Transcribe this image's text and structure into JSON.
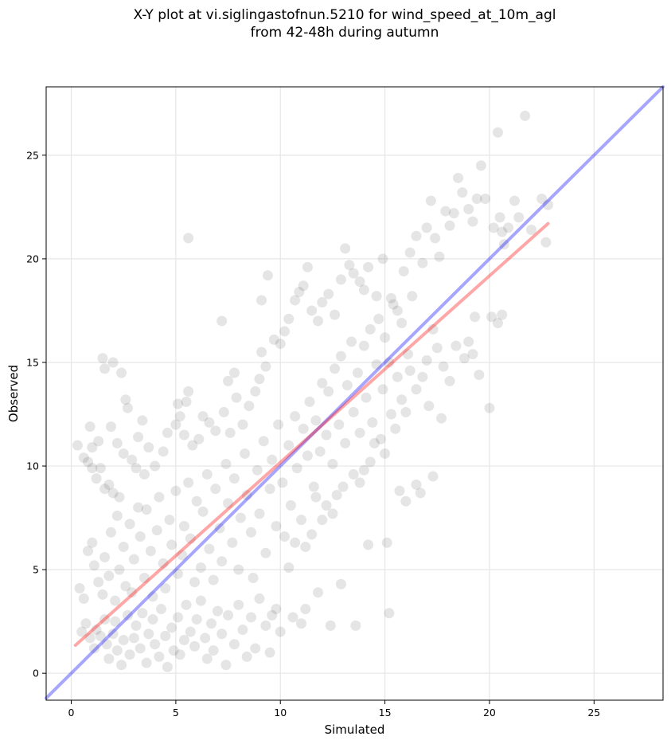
{
  "chart_data": {
    "type": "scatter",
    "title": "X-Y plot at vi.siglingastofnun.5210 for wind_speed_at_10m_agl\nfrom 42-48h during autumn",
    "xlabel": "Simulated",
    "ylabel": "Observed",
    "xlim": [
      -1.2,
      28.3
    ],
    "ylim": [
      -1.3,
      28.3
    ],
    "xticks": [
      0,
      5,
      10,
      15,
      20,
      25
    ],
    "yticks": [
      0,
      5,
      10,
      15,
      20,
      25
    ],
    "grid": true,
    "colors": {
      "points": "#333333",
      "identity": "#0000ff",
      "fit": "#ff0000",
      "grid": "#e6e6e6"
    },
    "identity_line": {
      "from": [
        -1.2,
        -1.2
      ],
      "to": [
        28.3,
        28.3
      ]
    },
    "fit_line": {
      "from": [
        0.2,
        1.35
      ],
      "to": [
        22.8,
        21.7
      ]
    },
    "points": [
      [
        0.3,
        11.0
      ],
      [
        0.6,
        10.4
      ],
      [
        0.8,
        10.2
      ],
      [
        1.0,
        9.9
      ],
      [
        1.2,
        9.4
      ],
      [
        1.4,
        9.9
      ],
      [
        1.6,
        8.9
      ],
      [
        1.8,
        9.1
      ],
      [
        2.0,
        8.7
      ],
      [
        2.3,
        8.5
      ],
      [
        1.5,
        15.2
      ],
      [
        1.6,
        14.7
      ],
      [
        2.0,
        15.0
      ],
      [
        2.4,
        14.5
      ],
      [
        1.9,
        11.9
      ],
      [
        2.6,
        13.2
      ],
      [
        2.7,
        12.8
      ],
      [
        3.4,
        12.2
      ],
      [
        3.2,
        11.4
      ],
      [
        3.7,
        10.9
      ],
      [
        2.2,
        11.1
      ],
      [
        0.9,
        11.9
      ],
      [
        1.3,
        11.2
      ],
      [
        1.0,
        10.9
      ],
      [
        2.5,
        10.6
      ],
      [
        2.9,
        10.3
      ],
      [
        3.1,
        9.9
      ],
      [
        3.5,
        9.6
      ],
      [
        4.0,
        10.0
      ],
      [
        4.4,
        10.7
      ],
      [
        4.6,
        11.6
      ],
      [
        5.0,
        12.0
      ],
      [
        5.2,
        12.4
      ],
      [
        5.5,
        13.1
      ],
      [
        5.6,
        13.6
      ],
      [
        5.1,
        13.0
      ],
      [
        5.4,
        11.5
      ],
      [
        5.8,
        11.0
      ],
      [
        6.1,
        11.3
      ],
      [
        6.3,
        12.4
      ],
      [
        5.6,
        21.0
      ],
      [
        7.2,
        17.0
      ],
      [
        7.5,
        14.1
      ],
      [
        7.8,
        14.5
      ],
      [
        7.9,
        13.3
      ],
      [
        7.3,
        12.6
      ],
      [
        6.6,
        12.1
      ],
      [
        6.9,
        11.7
      ],
      [
        7.6,
        11.6
      ],
      [
        8.2,
        12.0
      ],
      [
        8.5,
        12.9
      ],
      [
        8.8,
        13.6
      ],
      [
        9.0,
        14.2
      ],
      [
        9.3,
        14.8
      ],
      [
        9.1,
        15.5
      ],
      [
        9.7,
        16.1
      ],
      [
        9.4,
        19.2
      ],
      [
        9.1,
        18.0
      ],
      [
        10.0,
        15.9
      ],
      [
        10.2,
        16.5
      ],
      [
        10.4,
        17.1
      ],
      [
        10.7,
        18.0
      ],
      [
        10.9,
        18.4
      ],
      [
        11.1,
        18.7
      ],
      [
        11.3,
        19.6
      ],
      [
        11.5,
        17.5
      ],
      [
        11.8,
        17.0
      ],
      [
        12.0,
        17.9
      ],
      [
        12.3,
        18.3
      ],
      [
        12.6,
        17.3
      ],
      [
        12.9,
        19.0
      ],
      [
        13.1,
        20.5
      ],
      [
        13.3,
        19.7
      ],
      [
        13.5,
        19.3
      ],
      [
        13.8,
        18.9
      ],
      [
        14.0,
        18.5
      ],
      [
        14.2,
        19.6
      ],
      [
        14.6,
        18.2
      ],
      [
        14.9,
        20.0
      ],
      [
        15.3,
        18.1
      ],
      [
        15.6,
        17.5
      ],
      [
        15.9,
        19.4
      ],
      [
        16.2,
        20.3
      ],
      [
        16.5,
        21.1
      ],
      [
        16.8,
        19.8
      ],
      [
        17.0,
        21.5
      ],
      [
        17.2,
        22.8
      ],
      [
        17.4,
        21.0
      ],
      [
        17.6,
        20.1
      ],
      [
        17.9,
        22.3
      ],
      [
        18.1,
        21.6
      ],
      [
        18.3,
        22.2
      ],
      [
        18.5,
        23.9
      ],
      [
        18.7,
        23.2
      ],
      [
        19.0,
        22.4
      ],
      [
        19.2,
        21.8
      ],
      [
        19.4,
        22.9
      ],
      [
        19.6,
        24.5
      ],
      [
        19.8,
        22.9
      ],
      [
        20.2,
        21.5
      ],
      [
        20.4,
        26.1
      ],
      [
        20.5,
        22.0
      ],
      [
        20.6,
        21.3
      ],
      [
        20.7,
        20.7
      ],
      [
        20.9,
        21.5
      ],
      [
        21.2,
        22.8
      ],
      [
        21.4,
        22.0
      ],
      [
        21.7,
        26.9
      ],
      [
        22.0,
        21.4
      ],
      [
        22.8,
        22.6
      ],
      [
        22.7,
        20.8
      ],
      [
        22.5,
        22.9
      ],
      [
        20.1,
        17.2
      ],
      [
        20.4,
        16.9
      ],
      [
        20.6,
        17.3
      ],
      [
        19.3,
        17.2
      ],
      [
        19.0,
        16.0
      ],
      [
        19.2,
        15.4
      ],
      [
        19.5,
        14.4
      ],
      [
        18.8,
        15.2
      ],
      [
        18.4,
        15.8
      ],
      [
        18.1,
        14.1
      ],
      [
        17.8,
        14.8
      ],
      [
        17.5,
        15.7
      ],
      [
        17.3,
        16.6
      ],
      [
        17.0,
        15.1
      ],
      [
        16.8,
        14.3
      ],
      [
        16.5,
        13.7
      ],
      [
        16.2,
        14.6
      ],
      [
        16.0,
        12.6
      ],
      [
        15.8,
        13.2
      ],
      [
        15.5,
        11.8
      ],
      [
        15.3,
        12.5
      ],
      [
        15.0,
        10.6
      ],
      [
        14.8,
        11.3
      ],
      [
        14.5,
        11.1
      ],
      [
        14.3,
        10.2
      ],
      [
        14.0,
        9.8
      ],
      [
        13.8,
        9.2
      ],
      [
        13.5,
        9.6
      ],
      [
        15.7,
        8.8
      ],
      [
        16.0,
        8.3
      ],
      [
        16.5,
        9.1
      ],
      [
        16.7,
        8.7
      ],
      [
        17.3,
        9.5
      ],
      [
        17.1,
        12.9
      ],
      [
        17.7,
        12.3
      ],
      [
        20.0,
        12.8
      ],
      [
        15.1,
        6.3
      ],
      [
        14.2,
        6.2
      ],
      [
        15.2,
        2.9
      ],
      [
        13.6,
        2.3
      ],
      [
        12.9,
        4.3
      ],
      [
        12.4,
        2.3
      ],
      [
        11.8,
        3.9
      ],
      [
        11.2,
        3.1
      ],
      [
        11.0,
        2.4
      ],
      [
        10.6,
        2.7
      ],
      [
        10.0,
        2.0
      ],
      [
        9.6,
        2.8
      ],
      [
        12.0,
        7.4
      ],
      [
        12.5,
        7.7
      ],
      [
        12.7,
        8.6
      ],
      [
        13.0,
        9.0
      ],
      [
        12.2,
        8.1
      ],
      [
        11.7,
        8.5
      ],
      [
        11.5,
        6.7
      ],
      [
        11.2,
        6.1
      ],
      [
        10.7,
        6.3
      ],
      [
        10.4,
        5.1
      ],
      [
        0.5,
        2.0
      ],
      [
        0.7,
        2.4
      ],
      [
        0.9,
        1.7
      ],
      [
        1.1,
        1.2
      ],
      [
        1.2,
        2.1
      ],
      [
        1.4,
        1.8
      ],
      [
        1.6,
        2.6
      ],
      [
        1.7,
        1.4
      ],
      [
        1.8,
        0.7
      ],
      [
        2.0,
        1.9
      ],
      [
        2.1,
        2.5
      ],
      [
        2.2,
        1.1
      ],
      [
        2.4,
        0.4
      ],
      [
        2.5,
        1.6
      ],
      [
        2.7,
        2.8
      ],
      [
        2.8,
        0.9
      ],
      [
        3.0,
        1.7
      ],
      [
        3.1,
        2.3
      ],
      [
        3.3,
        1.2
      ],
      [
        3.4,
        2.9
      ],
      [
        3.6,
        0.5
      ],
      [
        3.7,
        1.9
      ],
      [
        3.9,
        2.6
      ],
      [
        4.0,
        1.4
      ],
      [
        4.2,
        0.8
      ],
      [
        4.3,
        3.1
      ],
      [
        4.5,
        1.8
      ],
      [
        4.6,
        0.3
      ],
      [
        4.8,
        2.2
      ],
      [
        4.9,
        1.1
      ],
      [
        5.1,
        2.7
      ],
      [
        5.2,
        0.9
      ],
      [
        5.4,
        1.6
      ],
      [
        5.5,
        3.3
      ],
      [
        5.7,
        2.0
      ],
      [
        5.9,
        1.3
      ],
      [
        6.0,
        2.6
      ],
      [
        6.2,
        3.5
      ],
      [
        6.4,
        1.7
      ],
      [
        6.5,
        0.7
      ],
      [
        6.7,
        2.4
      ],
      [
        6.8,
        1.1
      ],
      [
        7.0,
        3.0
      ],
      [
        7.2,
        1.9
      ],
      [
        7.4,
        0.4
      ],
      [
        7.5,
        2.8
      ],
      [
        7.8,
        1.4
      ],
      [
        8.0,
        3.3
      ],
      [
        8.2,
        2.1
      ],
      [
        8.4,
        0.8
      ],
      [
        8.6,
        2.7
      ],
      [
        8.8,
        1.2
      ],
      [
        9.0,
        3.6
      ],
      [
        9.3,
        2.3
      ],
      [
        9.5,
        1.0
      ],
      [
        9.8,
        3.1
      ],
      [
        0.4,
        4.1
      ],
      [
        0.6,
        3.6
      ],
      [
        0.8,
        5.9
      ],
      [
        1.0,
        6.3
      ],
      [
        1.1,
        5.2
      ],
      [
        1.3,
        4.4
      ],
      [
        1.5,
        3.8
      ],
      [
        1.6,
        5.6
      ],
      [
        1.8,
        4.7
      ],
      [
        1.9,
        6.8
      ],
      [
        2.1,
        3.5
      ],
      [
        2.2,
        7.6
      ],
      [
        2.3,
        5.0
      ],
      [
        2.5,
        6.1
      ],
      [
        2.6,
        4.2
      ],
      [
        2.8,
        7.2
      ],
      [
        2.9,
        3.9
      ],
      [
        3.0,
        5.5
      ],
      [
        3.2,
        8.0
      ],
      [
        3.3,
        6.6
      ],
      [
        3.5,
        4.6
      ],
      [
        3.6,
        7.9
      ],
      [
        3.8,
        5.9
      ],
      [
        3.9,
        3.7
      ],
      [
        4.1,
        6.9
      ],
      [
        4.2,
        8.5
      ],
      [
        4.4,
        5.3
      ],
      [
        4.5,
        4.1
      ],
      [
        4.7,
        7.4
      ],
      [
        4.8,
        6.2
      ],
      [
        5.0,
        8.8
      ],
      [
        5.1,
        4.8
      ],
      [
        5.3,
        5.7
      ],
      [
        5.4,
        7.1
      ],
      [
        5.6,
        9.2
      ],
      [
        5.7,
        6.5
      ],
      [
        5.9,
        4.4
      ],
      [
        6.0,
        8.3
      ],
      [
        6.2,
        5.1
      ],
      [
        6.3,
        7.8
      ],
      [
        6.5,
        9.6
      ],
      [
        6.6,
        6.0
      ],
      [
        6.8,
        4.5
      ],
      [
        6.9,
        8.9
      ],
      [
        7.1,
        7.0
      ],
      [
        7.2,
        5.4
      ],
      [
        7.4,
        10.1
      ],
      [
        7.5,
        8.2
      ],
      [
        7.7,
        6.3
      ],
      [
        7.8,
        9.4
      ],
      [
        8.0,
        5.0
      ],
      [
        8.1,
        7.5
      ],
      [
        8.3,
        10.6
      ],
      [
        8.4,
        8.6
      ],
      [
        8.6,
        6.8
      ],
      [
        8.7,
        4.6
      ],
      [
        8.9,
        9.8
      ],
      [
        9.0,
        7.7
      ],
      [
        9.2,
        11.2
      ],
      [
        9.3,
        5.8
      ],
      [
        9.5,
        8.9
      ],
      [
        9.6,
        10.3
      ],
      [
        9.8,
        7.1
      ],
      [
        9.9,
        12.0
      ],
      [
        10.1,
        9.2
      ],
      [
        10.2,
        6.6
      ],
      [
        10.4,
        11.0
      ],
      [
        10.5,
        8.1
      ],
      [
        10.7,
        12.4
      ],
      [
        10.8,
        9.9
      ],
      [
        11.0,
        7.4
      ],
      [
        11.1,
        11.8
      ],
      [
        11.3,
        10.5
      ],
      [
        11.4,
        13.1
      ],
      [
        11.6,
        9.0
      ],
      [
        11.7,
        12.2
      ],
      [
        11.9,
        10.7
      ],
      [
        12.0,
        14.0
      ],
      [
        12.2,
        11.5
      ],
      [
        12.3,
        13.6
      ],
      [
        12.5,
        10.1
      ],
      [
        12.6,
        14.7
      ],
      [
        12.8,
        12.0
      ],
      [
        12.9,
        15.3
      ],
      [
        13.1,
        11.1
      ],
      [
        13.2,
        13.9
      ],
      [
        13.4,
        16.0
      ],
      [
        13.5,
        12.6
      ],
      [
        13.7,
        14.5
      ],
      [
        13.8,
        11.6
      ],
      [
        14.0,
        15.8
      ],
      [
        14.1,
        13.3
      ],
      [
        14.3,
        16.6
      ],
      [
        14.4,
        12.1
      ],
      [
        14.6,
        14.9
      ],
      [
        14.7,
        17.1
      ],
      [
        14.9,
        13.7
      ],
      [
        15.0,
        16.2
      ],
      [
        15.2,
        15.0
      ],
      [
        15.4,
        17.8
      ],
      [
        15.6,
        14.3
      ],
      [
        15.8,
        16.9
      ],
      [
        16.1,
        15.4
      ],
      [
        16.3,
        18.2
      ]
    ]
  }
}
